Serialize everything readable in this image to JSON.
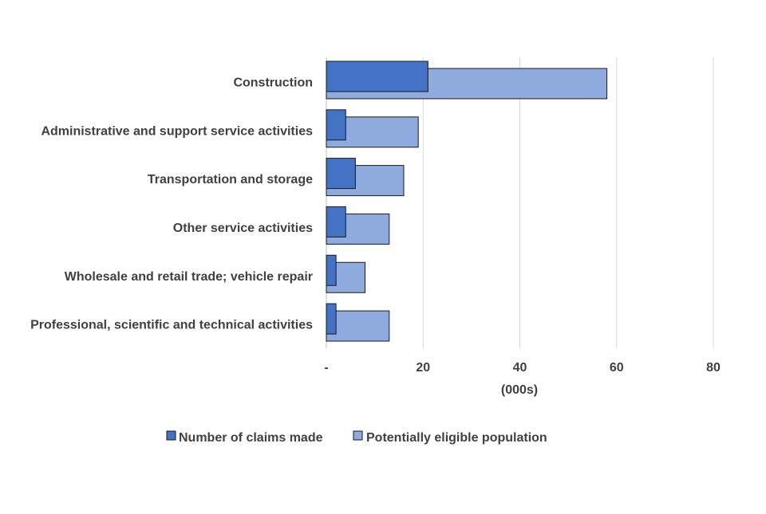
{
  "chart_data": {
    "type": "bar",
    "orientation": "horizontal",
    "layout": "overlapping",
    "categories": [
      "Construction",
      "Administrative and support service activities",
      "Transportation and storage",
      "Other service activities",
      "Wholesale and retail trade; vehicle repair",
      "Professional, scientific and technical activities"
    ],
    "series": [
      {
        "name": "Number of claims made",
        "color": "#4472c4",
        "values": [
          21,
          4,
          6,
          4,
          2,
          2
        ]
      },
      {
        "name": "Potentially eligible population",
        "color": "#8faadc",
        "values": [
          58,
          19,
          16,
          13,
          8,
          13
        ]
      }
    ],
    "title": "",
    "xlabel": "(000s)",
    "ylabel": "",
    "xlim": [
      0,
      80
    ],
    "xticks": [
      {
        "value": 0,
        "label": "-"
      },
      {
        "value": 20,
        "label": "20"
      },
      {
        "value": 40,
        "label": "40"
      },
      {
        "value": 60,
        "label": "60"
      },
      {
        "value": 80,
        "label": "80"
      }
    ],
    "grid": "vertical",
    "legend": "bottom"
  }
}
